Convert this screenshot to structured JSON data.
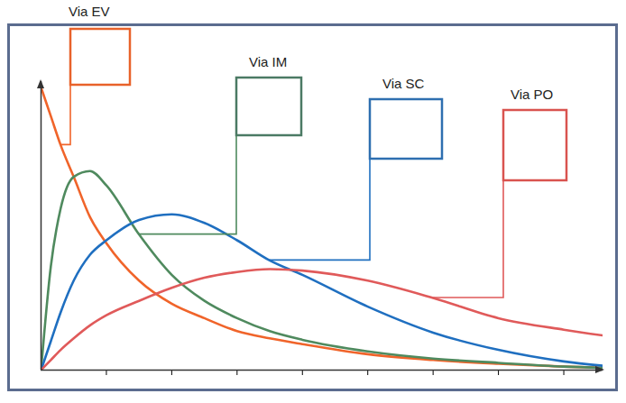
{
  "chart_data": {
    "type": "line",
    "x": [
      0,
      0.15,
      0.3,
      0.5,
      0.75,
      1,
      1.5,
      2,
      2.5,
      3,
      3.5,
      4,
      5,
      6,
      7,
      8,
      8.6
    ],
    "series": [
      {
        "name": "Via EV",
        "color": "#f0642a",
        "values": [
          9.8,
          8.8,
          7.8,
          6.7,
          5.3,
          4.4,
          3.1,
          2.3,
          1.8,
          1.35,
          1.1,
          0.9,
          0.55,
          0.35,
          0.22,
          0.12,
          0.08
        ]
      },
      {
        "name": "Via IM",
        "color": "#4f8a5e",
        "values": [
          0,
          3.6,
          5.6,
          6.7,
          6.9,
          6.4,
          4.7,
          3.3,
          2.4,
          1.8,
          1.35,
          1.05,
          0.65,
          0.4,
          0.25,
          0.12,
          0.08
        ]
      },
      {
        "name": "Via SC",
        "color": "#1f6fc0",
        "values": [
          0,
          1.0,
          2.0,
          3.1,
          4.0,
          4.5,
          5.2,
          5.4,
          5.1,
          4.5,
          3.8,
          3.3,
          2.2,
          1.3,
          0.7,
          0.3,
          0.15
        ]
      },
      {
        "name": "Via PO",
        "color": "#e05a5a",
        "values": [
          0,
          0.35,
          0.7,
          1.1,
          1.55,
          1.9,
          2.4,
          2.85,
          3.2,
          3.4,
          3.5,
          3.45,
          3.1,
          2.5,
          1.8,
          1.4,
          1.2
        ]
      }
    ],
    "xlim": [
      0,
      8.6
    ],
    "ylim": [
      0,
      10
    ],
    "xticks": [
      1,
      2,
      3,
      4,
      5,
      6,
      7,
      8
    ],
    "tick_labels": false,
    "grid": false
  }
}
